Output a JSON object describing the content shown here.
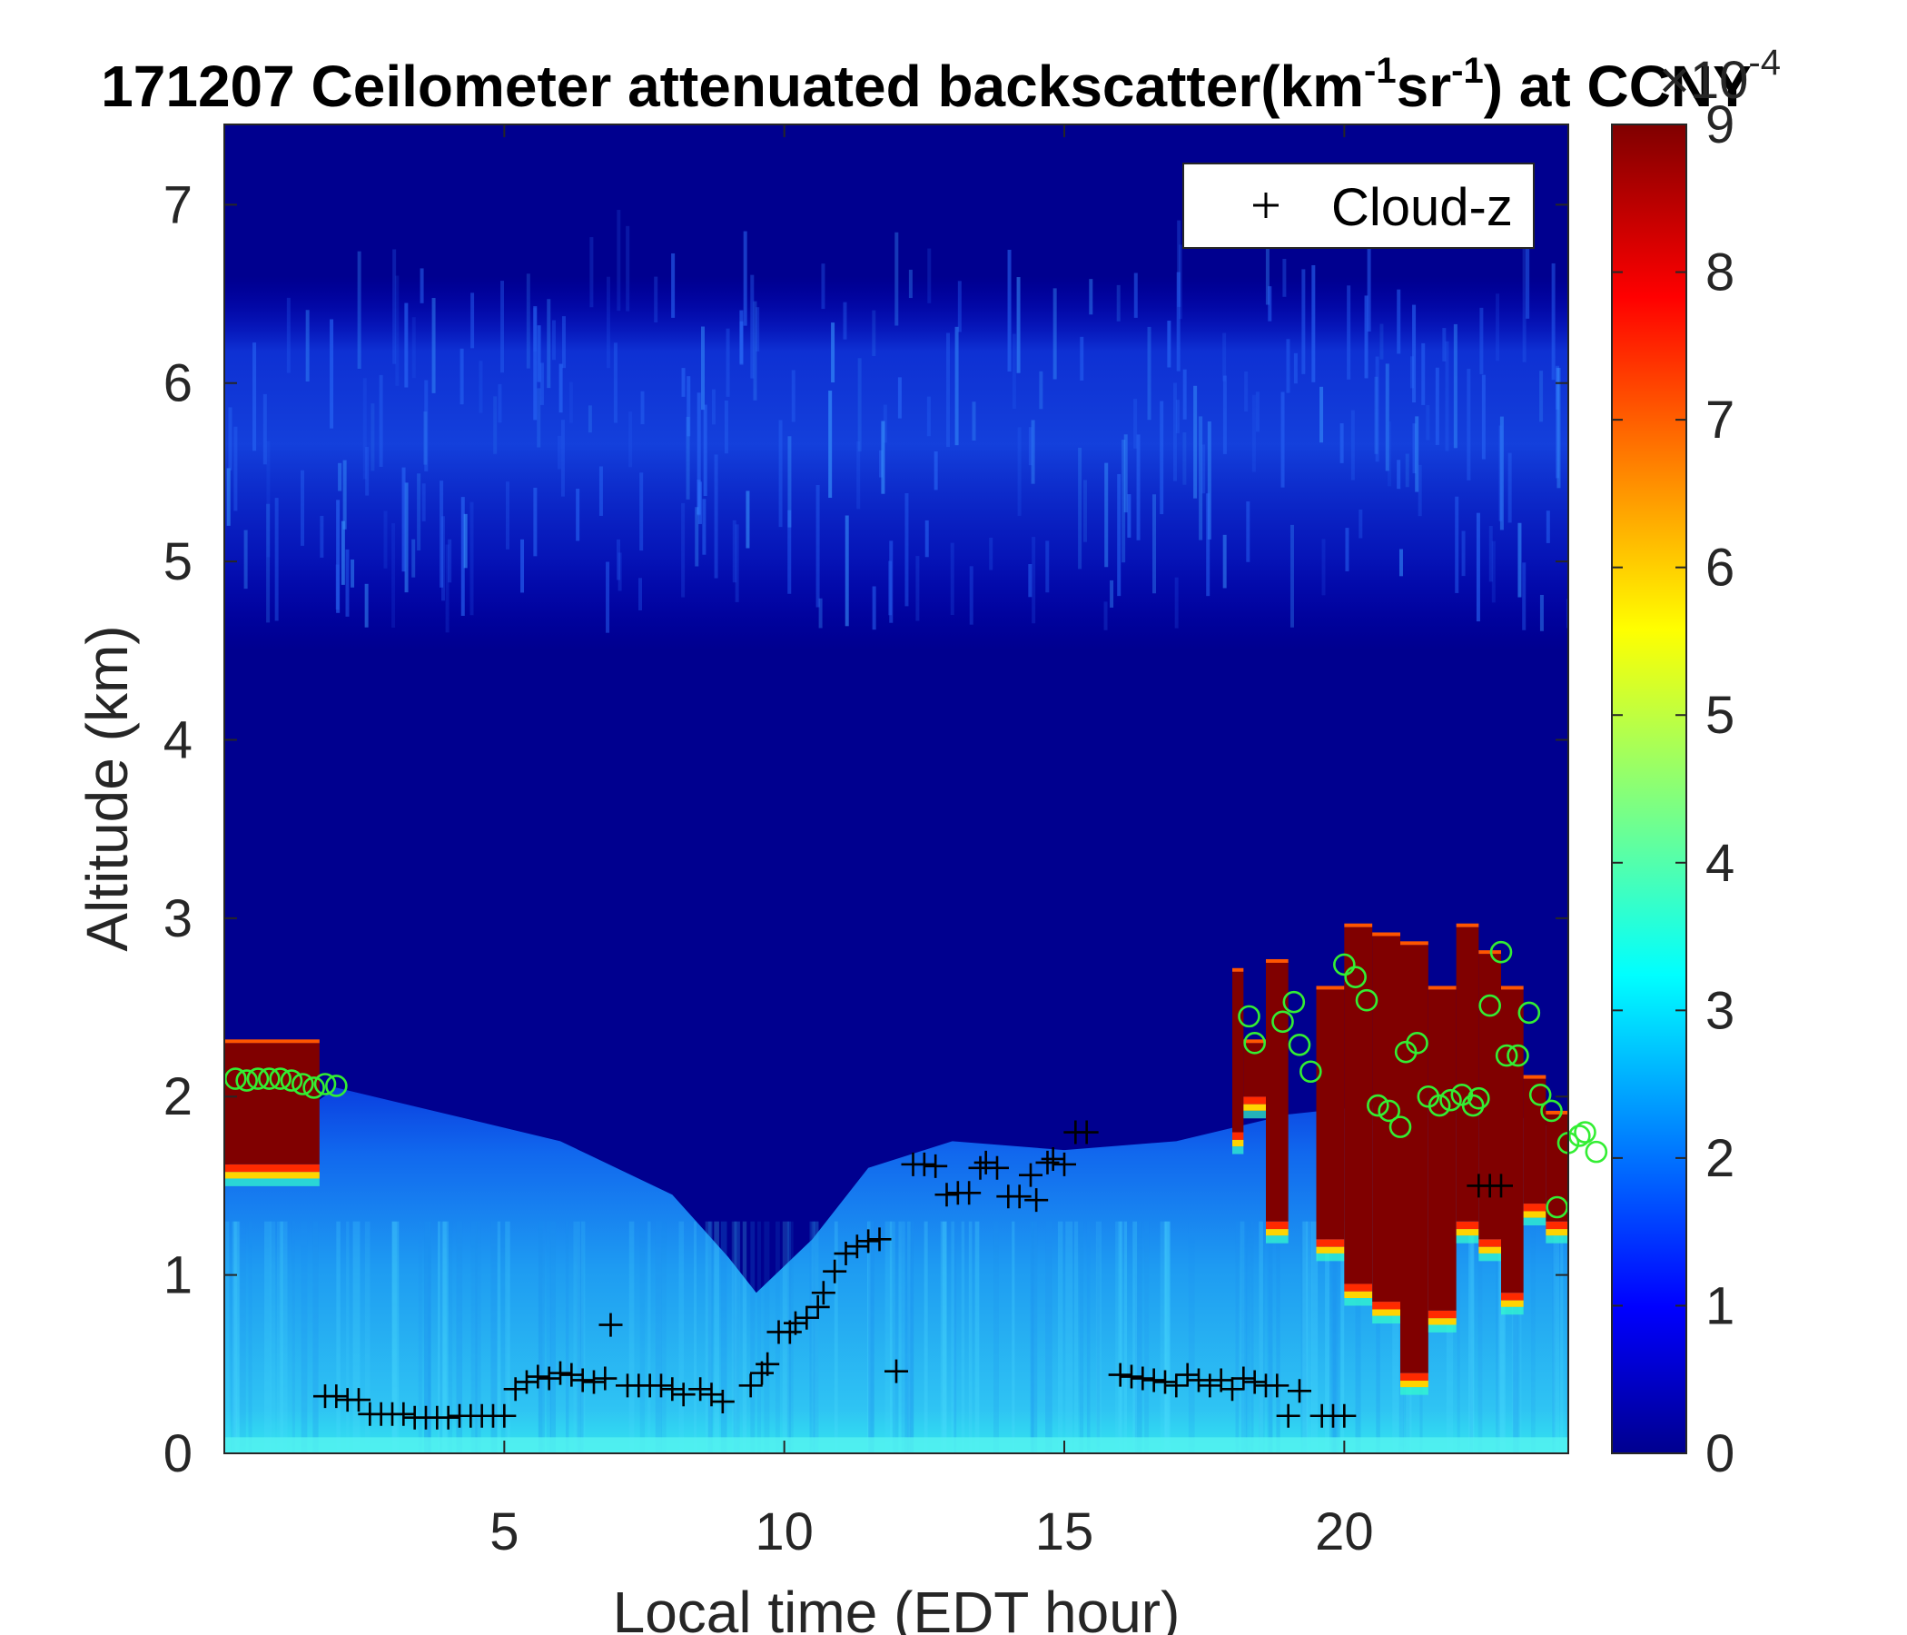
{
  "chart_data": {
    "type": "heatmap",
    "title": {
      "prefix": "171207 Ceilometer attenuated backscatter(km",
      "sup1": "-1",
      "middle": "sr",
      "sup2": "-1",
      "suffix": ") at CCNY"
    },
    "xlabel": "Local time (EDT hour)",
    "ylabel": "Altitude (km)",
    "xlim": [
      0,
      24
    ],
    "ylim": [
      0,
      7.45
    ],
    "xticks": [
      5,
      10,
      15,
      20
    ],
    "yticks": [
      0,
      1,
      2,
      3,
      4,
      5,
      6,
      7
    ],
    "colorbar": {
      "colormap": "jet",
      "range": [
        0,
        9
      ],
      "ticks": [
        0,
        1,
        2,
        3,
        4,
        5,
        6,
        7,
        8,
        9
      ],
      "multiplier": "×10",
      "multiplier_exponent": "-4"
    },
    "legend": {
      "position": "top-right",
      "entries": [
        {
          "marker": "+",
          "label": "Cloud-z"
        }
      ]
    },
    "colors": {
      "background_low": "#00008f",
      "saturated": "#800000",
      "circle_marker": "#33ee33",
      "plus_marker": "#000000"
    },
    "field_description": {
      "elevated_noise_layer_km": [
        4.5,
        6.6
      ],
      "boundary_layer_top_km": [
        [
          0,
          1.6
        ],
        [
          2,
          2.05
        ],
        [
          4,
          1.9
        ],
        [
          6,
          1.75
        ],
        [
          8,
          1.45
        ],
        [
          9,
          1.1
        ],
        [
          9.5,
          0.9
        ],
        [
          10.5,
          1.2
        ],
        [
          11.5,
          1.6
        ],
        [
          13,
          1.75
        ],
        [
          15,
          1.7
        ],
        [
          17,
          1.75
        ],
        [
          19,
          1.9
        ],
        [
          22,
          2.0
        ],
        [
          24,
          1.8
        ]
      ],
      "saturated_cloud_columns": [
        {
          "x0": 0.0,
          "x1": 1.7,
          "top": 2.3,
          "bottom": 1.62
        },
        {
          "x0": 18.0,
          "x1": 18.2,
          "top": 2.7,
          "bottom": 1.8
        },
        {
          "x0": 18.2,
          "x1": 18.6,
          "top": 2.3,
          "bottom": 2.0
        },
        {
          "x0": 18.6,
          "x1": 19.0,
          "top": 2.75,
          "bottom": 1.3
        },
        {
          "x0": 19.5,
          "x1": 20.0,
          "top": 2.6,
          "bottom": 1.2
        },
        {
          "x0": 20.0,
          "x1": 20.5,
          "top": 2.95,
          "bottom": 0.95
        },
        {
          "x0": 20.5,
          "x1": 21.0,
          "top": 2.9,
          "bottom": 0.85
        },
        {
          "x0": 21.0,
          "x1": 21.5,
          "top": 2.85,
          "bottom": 0.45
        },
        {
          "x0": 21.5,
          "x1": 22.0,
          "top": 2.6,
          "bottom": 0.8
        },
        {
          "x0": 22.0,
          "x1": 22.4,
          "top": 2.95,
          "bottom": 1.3
        },
        {
          "x0": 22.4,
          "x1": 22.8,
          "top": 2.8,
          "bottom": 1.2
        },
        {
          "x0": 22.8,
          "x1": 23.2,
          "top": 2.6,
          "bottom": 0.9
        },
        {
          "x0": 23.2,
          "x1": 23.6,
          "top": 2.1,
          "bottom": 1.4
        },
        {
          "x0": 23.6,
          "x1": 24.0,
          "top": 1.9,
          "bottom": 1.3
        }
      ]
    },
    "series": [
      {
        "name": "Cloud-z",
        "marker": "+",
        "points": [
          [
            1.8,
            0.32
          ],
          [
            2.0,
            0.32
          ],
          [
            2.2,
            0.3
          ],
          [
            2.4,
            0.3
          ],
          [
            2.6,
            0.22
          ],
          [
            2.8,
            0.22
          ],
          [
            3.0,
            0.22
          ],
          [
            3.2,
            0.22
          ],
          [
            3.4,
            0.2
          ],
          [
            3.6,
            0.2
          ],
          [
            3.8,
            0.2
          ],
          [
            4.0,
            0.2
          ],
          [
            4.2,
            0.21
          ],
          [
            4.4,
            0.21
          ],
          [
            4.6,
            0.21
          ],
          [
            4.8,
            0.21
          ],
          [
            5.0,
            0.21
          ],
          [
            5.2,
            0.36
          ],
          [
            5.4,
            0.4
          ],
          [
            5.6,
            0.43
          ],
          [
            5.8,
            0.42
          ],
          [
            6.0,
            0.45
          ],
          [
            6.2,
            0.44
          ],
          [
            6.4,
            0.41
          ],
          [
            6.6,
            0.4
          ],
          [
            6.8,
            0.42
          ],
          [
            6.9,
            0.72
          ],
          [
            7.2,
            0.38
          ],
          [
            7.4,
            0.38
          ],
          [
            7.6,
            0.38
          ],
          [
            7.8,
            0.38
          ],
          [
            8.0,
            0.36
          ],
          [
            8.2,
            0.33
          ],
          [
            8.5,
            0.36
          ],
          [
            8.7,
            0.33
          ],
          [
            8.9,
            0.29
          ],
          [
            9.4,
            0.38
          ],
          [
            9.6,
            0.45
          ],
          [
            9.7,
            0.5
          ],
          [
            9.9,
            0.68
          ],
          [
            10.1,
            0.68
          ],
          [
            10.2,
            0.73
          ],
          [
            10.4,
            0.76
          ],
          [
            10.6,
            0.82
          ],
          [
            10.7,
            0.9
          ],
          [
            10.9,
            1.02
          ],
          [
            11.1,
            1.12
          ],
          [
            11.3,
            1.16
          ],
          [
            11.5,
            1.19
          ],
          [
            11.7,
            1.2
          ],
          [
            12.0,
            0.46
          ],
          [
            12.3,
            1.62
          ],
          [
            12.5,
            1.62
          ],
          [
            12.7,
            1.61
          ],
          [
            12.9,
            1.45
          ],
          [
            13.1,
            1.46
          ],
          [
            13.3,
            1.46
          ],
          [
            13.5,
            1.6
          ],
          [
            13.6,
            1.63
          ],
          [
            13.8,
            1.6
          ],
          [
            14.0,
            1.44
          ],
          [
            14.2,
            1.44
          ],
          [
            14.4,
            1.56
          ],
          [
            14.5,
            1.42
          ],
          [
            14.7,
            1.63
          ],
          [
            14.8,
            1.65
          ],
          [
            15.0,
            1.62
          ],
          [
            15.2,
            1.8
          ],
          [
            15.4,
            1.8
          ],
          [
            16.0,
            0.44
          ],
          [
            16.2,
            0.43
          ],
          [
            16.4,
            0.42
          ],
          [
            16.6,
            0.41
          ],
          [
            16.8,
            0.4
          ],
          [
            17.0,
            0.38
          ],
          [
            17.2,
            0.44
          ],
          [
            17.4,
            0.41
          ],
          [
            17.6,
            0.38
          ],
          [
            17.8,
            0.41
          ],
          [
            18.0,
            0.36
          ],
          [
            18.2,
            0.42
          ],
          [
            18.4,
            0.4
          ],
          [
            18.6,
            0.38
          ],
          [
            18.8,
            0.38
          ],
          [
            19.0,
            0.21
          ],
          [
            19.2,
            0.35
          ],
          [
            19.6,
            0.21
          ],
          [
            19.8,
            0.21
          ],
          [
            20.0,
            0.21
          ],
          [
            22.4,
            1.5
          ],
          [
            22.6,
            1.5
          ],
          [
            22.8,
            1.5
          ]
        ]
      },
      {
        "marker": "o",
        "points": [
          [
            0.2,
            2.1
          ],
          [
            0.4,
            2.09
          ],
          [
            0.6,
            2.1
          ],
          [
            0.8,
            2.1
          ],
          [
            1.0,
            2.1
          ],
          [
            1.2,
            2.09
          ],
          [
            1.4,
            2.07
          ],
          [
            1.6,
            2.05
          ],
          [
            1.8,
            2.07
          ],
          [
            2.0,
            2.06
          ],
          [
            18.3,
            2.45
          ],
          [
            18.4,
            2.3
          ],
          [
            18.9,
            2.42
          ],
          [
            19.1,
            2.53
          ],
          [
            19.2,
            2.29
          ],
          [
            19.4,
            2.14
          ],
          [
            20.0,
            2.74
          ],
          [
            20.2,
            2.67
          ],
          [
            20.4,
            2.54
          ],
          [
            20.6,
            1.95
          ],
          [
            20.8,
            1.92
          ],
          [
            21.0,
            1.83
          ],
          [
            21.1,
            2.25
          ],
          [
            21.3,
            2.3
          ],
          [
            21.5,
            2.0
          ],
          [
            21.7,
            1.95
          ],
          [
            21.9,
            1.98
          ],
          [
            22.1,
            2.01
          ],
          [
            22.3,
            1.95
          ],
          [
            22.4,
            1.99
          ],
          [
            22.6,
            2.51
          ],
          [
            22.8,
            2.81
          ],
          [
            22.9,
            2.23
          ],
          [
            23.1,
            2.23
          ],
          [
            23.3,
            2.47
          ],
          [
            23.5,
            2.01
          ],
          [
            23.7,
            1.92
          ],
          [
            23.8,
            1.38
          ],
          [
            24.0,
            1.74
          ],
          [
            24.2,
            1.78
          ],
          [
            24.3,
            1.8
          ],
          [
            24.5,
            1.69
          ]
        ]
      }
    ]
  }
}
